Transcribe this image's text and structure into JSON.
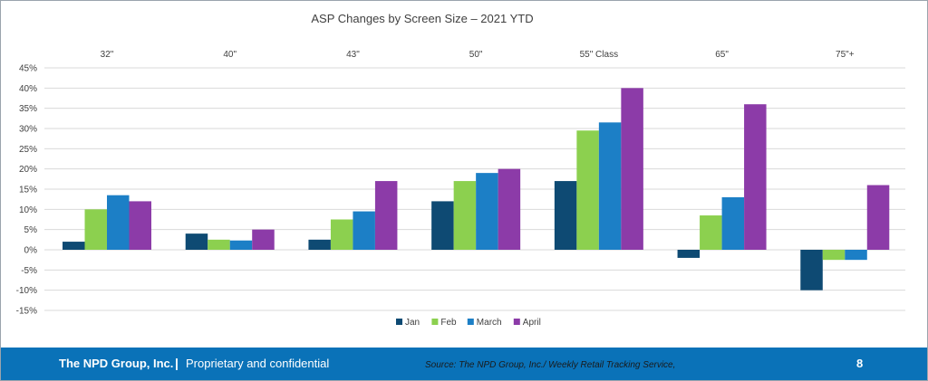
{
  "chart_data": {
    "type": "bar",
    "title": "ASP Changes by Screen Size – 2021 YTD",
    "categories": [
      "32\"",
      "40\"",
      "43\"",
      "50\"",
      "55\"  Class",
      "65\"",
      "75\"+"
    ],
    "series": [
      {
        "name": "Jan",
        "color": "#0e4a73",
        "values": [
          2,
          4,
          2.5,
          12,
          17,
          -2,
          -10
        ]
      },
      {
        "name": "Feb",
        "color": "#8cd04f",
        "values": [
          10,
          2.5,
          7.5,
          17,
          29.5,
          8.5,
          -2.5
        ]
      },
      {
        "name": "March",
        "color": "#1c7fc6",
        "values": [
          13.5,
          2.3,
          9.5,
          19,
          31.5,
          13,
          -2.5
        ]
      },
      {
        "name": "April",
        "color": "#8c3ba8",
        "values": [
          12,
          5,
          17,
          20,
          40,
          36,
          16
        ]
      }
    ],
    "ylim": [
      -15,
      45
    ],
    "yticks": [
      45,
      40,
      35,
      30,
      25,
      20,
      15,
      10,
      5,
      0,
      -5,
      -10,
      -15
    ],
    "ytick_format": "percent",
    "grid": true,
    "category_labels_position": "top",
    "legend_position": "bottom"
  },
  "footer": {
    "company": "The NPD Group, Inc.",
    "separator": "|",
    "confidential": "Proprietary and confidential",
    "source": "Source: The NPD Group, Inc./ Weekly Retail Tracking Service,",
    "page_number": "8"
  },
  "colors": {
    "footer_bg": "#0a72b8",
    "grid": "#d9d9d9"
  }
}
